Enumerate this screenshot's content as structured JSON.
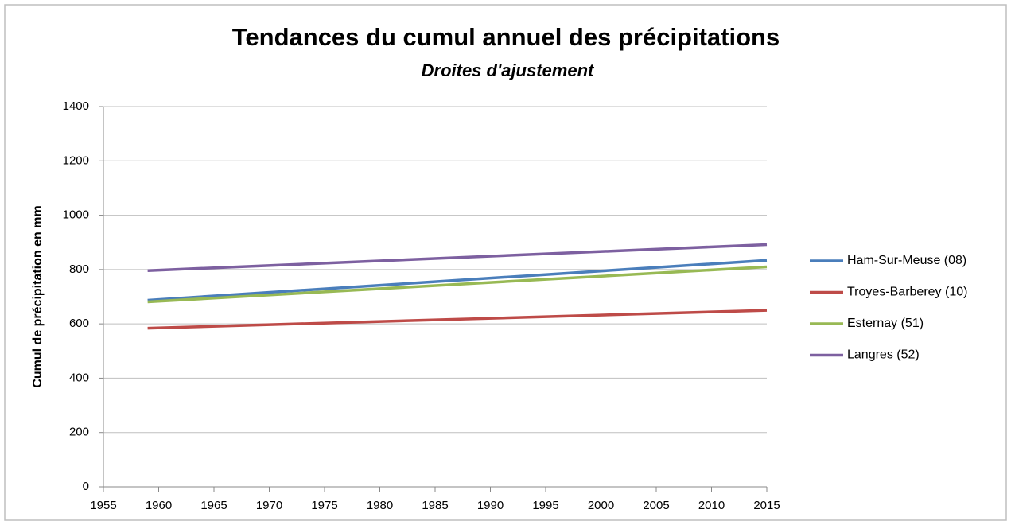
{
  "chart_data": {
    "type": "line",
    "title": "Tendances du cumul annuel des précipitations",
    "subtitle": "Droites d'ajustement",
    "y_label": "Cumul de précipitation en mm",
    "x": [
      1959,
      2015
    ],
    "xlim": [
      1955,
      2015
    ],
    "xticks": [
      1955,
      1960,
      1965,
      1970,
      1975,
      1980,
      1985,
      1990,
      1995,
      2000,
      2005,
      2010,
      2015
    ],
    "ylim": [
      0,
      1400
    ],
    "yticks": [
      0,
      200,
      400,
      600,
      800,
      1000,
      1200,
      1400
    ],
    "grid": true,
    "legend": "right",
    "series": [
      {
        "name": "Ham-Sur-Meuse (08)",
        "color": "#4a7ebb",
        "values": [
          687,
          834
        ]
      },
      {
        "name": "Troyes-Barberey (10)",
        "color": "#be4b48",
        "values": [
          584,
          650
        ]
      },
      {
        "name": "Esternay (51)",
        "color": "#98b954",
        "values": [
          681,
          810
        ]
      },
      {
        "name": "Langres (52)",
        "color": "#7d60a0",
        "values": [
          796,
          892
        ]
      }
    ]
  }
}
